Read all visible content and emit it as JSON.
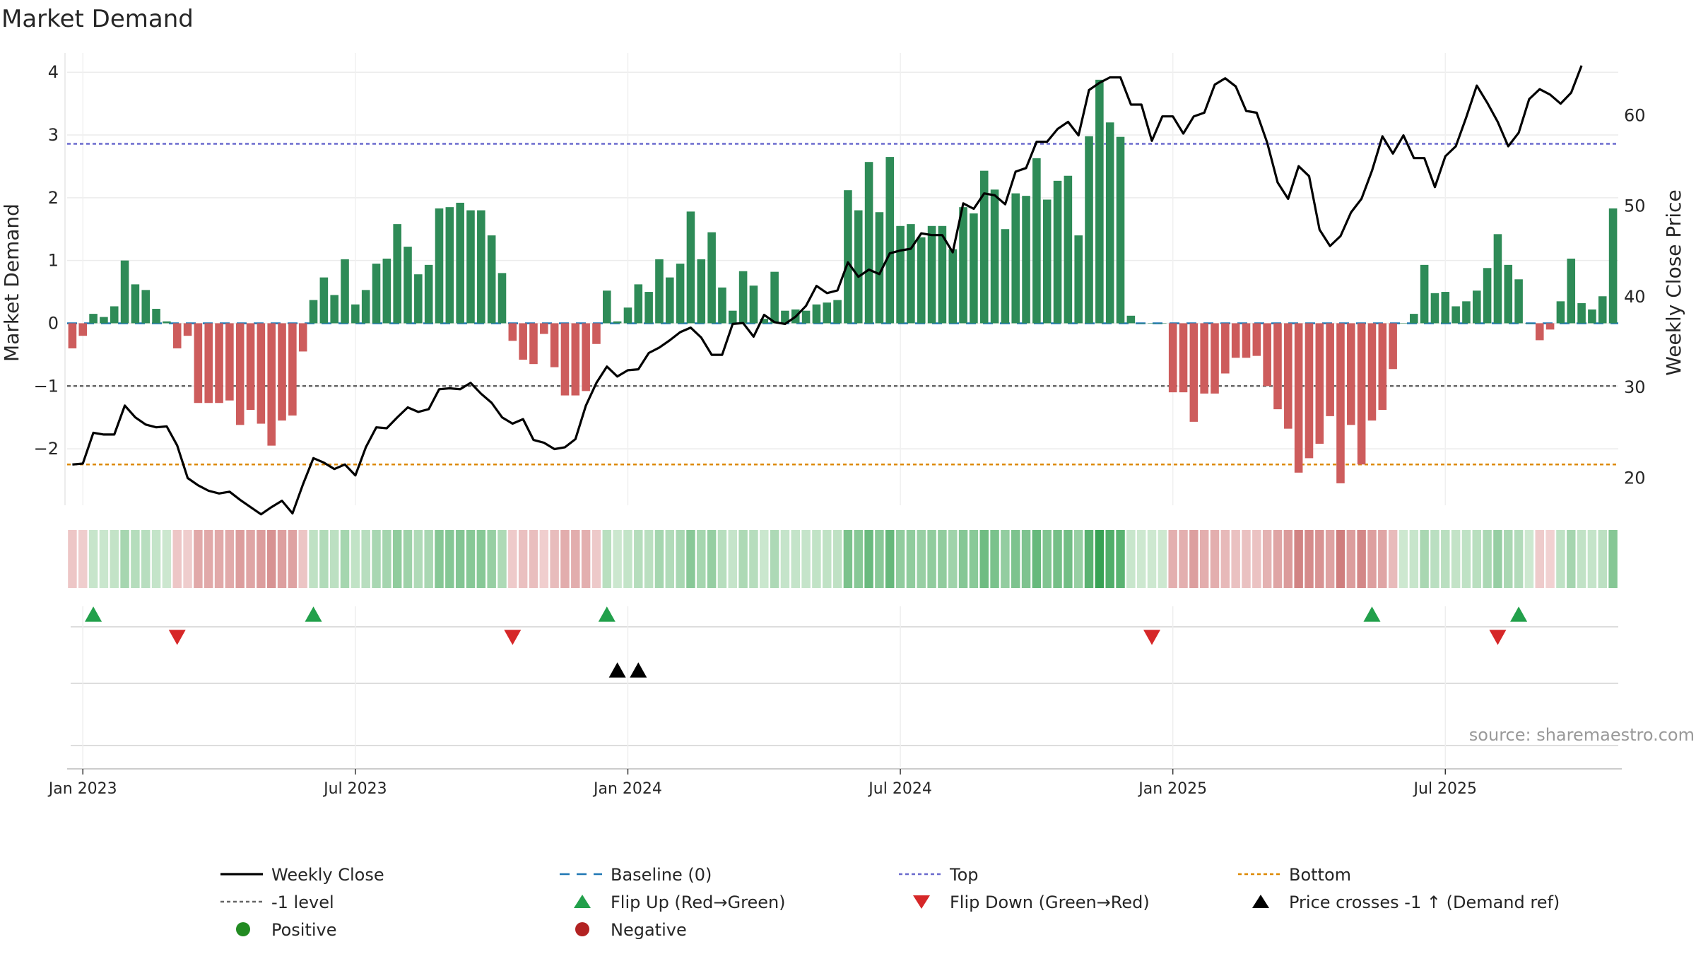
{
  "chart_data": {
    "type": "bar",
    "title": "Market Demand",
    "ylabel": "Market Demand",
    "y2label": "Weekly Close Price",
    "source": "source: sharemaestro.com",
    "ylim": [
      -2.9,
      4.25
    ],
    "y2lim": [
      17,
      66.5
    ],
    "grid": true,
    "date_start": "2022-12-26",
    "x_ticks": [
      {
        "label": "Jan 2023",
        "week": 1
      },
      {
        "label": "Jul 2023",
        "week": 27
      },
      {
        "label": "Jan 2024",
        "week": 53
      },
      {
        "label": "Jul 2024",
        "week": 79
      },
      {
        "label": "Jan 2025",
        "week": 105
      },
      {
        "label": "Jul 2025",
        "week": 131
      }
    ],
    "y_ticks": [
      {
        "label": "4",
        "value": 4
      },
      {
        "label": "3",
        "value": 3
      },
      {
        "label": "2",
        "value": 2
      },
      {
        "label": "1",
        "value": 1
      },
      {
        "label": "0",
        "value": 0
      },
      {
        "label": "−1",
        "value": -1
      },
      {
        "label": "−2",
        "value": -2
      }
    ],
    "y2_ticks": [
      {
        "label": "20",
        "value": 20
      },
      {
        "label": "30",
        "value": 30
      },
      {
        "label": "40",
        "value": 40
      },
      {
        "label": "50",
        "value": 50
      },
      {
        "label": "60",
        "value": 60
      }
    ],
    "reference_lines": {
      "top": 2.86,
      "bottom": -2.25,
      "minus_one": -1,
      "baseline": 0
    },
    "demand": [
      -0.4,
      -0.2,
      0.15,
      0.1,
      0.27,
      1.0,
      0.62,
      0.53,
      0.23,
      0.03,
      -0.4,
      -0.2,
      -1.27,
      -1.27,
      -1.27,
      -1.23,
      -1.62,
      -1.38,
      -1.6,
      -1.95,
      -1.55,
      -1.47,
      -0.45,
      0.37,
      0.73,
      0.45,
      1.02,
      0.3,
      0.53,
      0.95,
      1.03,
      1.58,
      1.22,
      0.78,
      0.93,
      1.83,
      1.85,
      1.92,
      1.8,
      1.8,
      1.4,
      0.8,
      -0.28,
      -0.58,
      -0.65,
      -0.17,
      -0.7,
      -1.15,
      -1.15,
      -1.08,
      -0.33,
      0.52,
      0.03,
      0.25,
      0.62,
      0.5,
      1.02,
      0.73,
      0.95,
      1.78,
      1.02,
      1.45,
      0.57,
      0.2,
      0.83,
      0.6,
      0.07,
      0.82,
      0.2,
      0.22,
      0.2,
      0.3,
      0.33,
      0.37,
      2.12,
      1.8,
      2.57,
      1.77,
      2.65,
      1.55,
      1.58,
      1.37,
      1.55,
      1.55,
      1.18,
      1.85,
      1.75,
      2.43,
      2.13,
      1.5,
      2.07,
      2.03,
      2.63,
      1.97,
      2.27,
      2.35,
      1.4,
      2.98,
      3.88,
      3.2,
      2.97,
      0.12,
      0.0,
      0.0,
      0.0,
      -1.1,
      -1.1,
      -1.57,
      -1.12,
      -1.12,
      -0.8,
      -0.55,
      -0.55,
      -0.52,
      -1.0,
      -1.37,
      -1.68,
      -2.38,
      -2.15,
      -1.92,
      -1.48,
      -2.55,
      -1.62,
      -2.25,
      -1.55,
      -1.38,
      -0.73,
      0.0,
      0.15,
      0.93,
      0.48,
      0.5,
      0.27,
      0.35,
      0.52,
      0.88,
      1.42,
      0.93,
      0.7,
      0.0,
      -0.27,
      -0.1,
      0.35,
      1.03,
      0.32,
      0.22,
      0.43,
      1.83
    ],
    "weekly_close": [
      21.5,
      21.6,
      25,
      24.8,
      24.8,
      28,
      26.7,
      25.9,
      25.6,
      25.7,
      23.6,
      20,
      19.2,
      18.6,
      18.3,
      18.5,
      17.6,
      16.8,
      16,
      16.8,
      17.5,
      16.1,
      19.3,
      22.2,
      21.7,
      21.0,
      21.5,
      20.3,
      23.4,
      25.6,
      25.5,
      26.7,
      27.8,
      27.3,
      27.6,
      29.8,
      29.9,
      29.8,
      30.5,
      29.3,
      28.3,
      26.7,
      26.0,
      26.5,
      24.2,
      23.9,
      23.2,
      23.4,
      24.3,
      28.0,
      30.5,
      32.3,
      31.2,
      31.9,
      32.0,
      33.8,
      34.4,
      35.2,
      36.1,
      36.6,
      35.5,
      33.6,
      33.6,
      37.0,
      37.1,
      35.6,
      38.0,
      37.2,
      37.0,
      37.8,
      39.0,
      41.2,
      40.4,
      40.7,
      43.8,
      42.2,
      43.0,
      42.5,
      44.8,
      45.1,
      45.3,
      47.0,
      46.8,
      46.8,
      44.9,
      50.3,
      49.7,
      51.4,
      51.2,
      50.2,
      53.8,
      54.2,
      57.1,
      57.1,
      58.5,
      59.3,
      57.8,
      62.8,
      63.6,
      64.2,
      64.2,
      61.2,
      61.2,
      57.2,
      59.9,
      59.9,
      58.0,
      59.9,
      60.3,
      63.4,
      64.1,
      63.2,
      60.5,
      60.3,
      57.0,
      52.6,
      50.8,
      54.4,
      53.3,
      47.4,
      45.6,
      46.7,
      49.3,
      50.8,
      53.9,
      57.7,
      55.8,
      57.8,
      55.3,
      55.3,
      52.1,
      55.5,
      56.6,
      59.8,
      63.3,
      61.4,
      59.3,
      56.6,
      58.1,
      61.8,
      62.9,
      62.3,
      61.3,
      62.5,
      65.5
    ],
    "flips_up_week": [
      2,
      23,
      51,
      124,
      138
    ],
    "flips_down_week": [
      10,
      42,
      103,
      136
    ],
    "price_cross_week": [
      52,
      54
    ],
    "colors": {
      "pos_bar": "#2e8b57",
      "neg_bar": "#cd5c5c",
      "close_line": "#000000",
      "baseline": "#1f77b4",
      "top_line": "#6a6acd",
      "bottom_line": "#dd8800",
      "minus_one": "#666666",
      "flip_up": "#22a04b",
      "flip_down": "#d62728",
      "cross": "#000000",
      "positive_dot": "#228b22",
      "negative_dot": "#b22222"
    },
    "legend": [
      {
        "label": "Weekly Close",
        "kind": "line-solid",
        "color": "#000000"
      },
      {
        "label": "Baseline (0)",
        "kind": "line-dash",
        "color": "#1f77b4"
      },
      {
        "label": "Top",
        "kind": "line-dot",
        "color": "#6a6acd"
      },
      {
        "label": "Bottom",
        "kind": "line-dot",
        "color": "#dd8800"
      },
      {
        "label": "-1 level",
        "kind": "line-dot",
        "color": "#666666"
      },
      {
        "label": "Flip Up (Red→Green)",
        "kind": "tri-up",
        "color": "#22a04b"
      },
      {
        "label": "Flip Down (Green→Red)",
        "kind": "tri-down",
        "color": "#d62728"
      },
      {
        "label": "Price crosses -1 ↑ (Demand ref)",
        "kind": "tri-up",
        "color": "#000000"
      },
      {
        "label": "Positive",
        "kind": "dot",
        "color": "#228b22"
      },
      {
        "label": "Negative",
        "kind": "dot",
        "color": "#b22222"
      }
    ]
  }
}
